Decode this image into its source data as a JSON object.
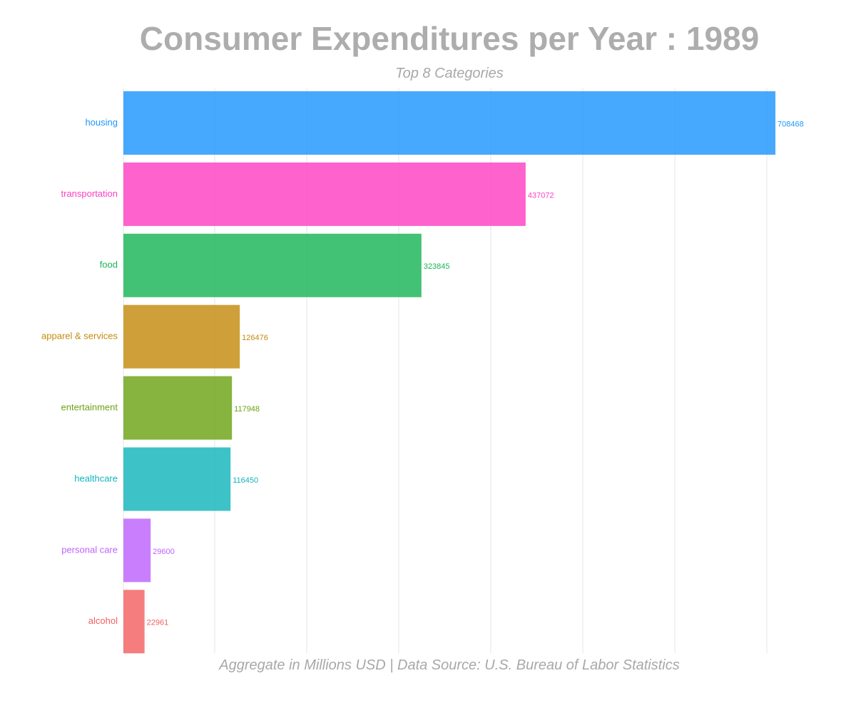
{
  "chart_data": {
    "type": "bar",
    "orientation": "horizontal",
    "title": "Consumer Expenditures per Year : 1989",
    "subtitle": "Top 8 Categories",
    "caption": "Aggregate in Millions USD | Data Source: U.S. Bureau of Labor Statistics",
    "categories": [
      "housing",
      "transportation",
      "food",
      "apparel & services",
      "entertainment",
      "healthcare",
      "personal care",
      "alcohol"
    ],
    "values": [
      708468,
      437072,
      323845,
      126476,
      117948,
      116450,
      29600,
      22961
    ],
    "value_labels": [
      "708468",
      "437072",
      "323845",
      "126476",
      "117948",
      "116450",
      "29600",
      "22961"
    ],
    "colors": [
      "#1e96fc",
      "#fc3fc2",
      "#19b556",
      "#c48b0d",
      "#6ba315",
      "#12b4bc",
      "#bd63fc",
      "#f46060"
    ],
    "xlim": [
      0,
      708468
    ],
    "grid": "vertical",
    "legend": "none"
  }
}
